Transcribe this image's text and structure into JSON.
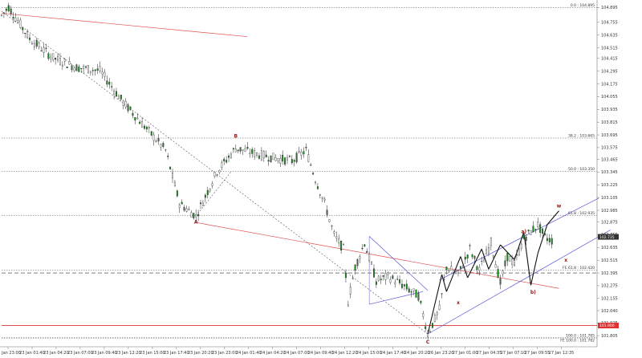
{
  "chart_data": {
    "type": "candlestick",
    "title": "",
    "xlabel": "",
    "ylabel": "",
    "ylim": [
      101.7,
      104.95
    ],
    "x_count": 220,
    "price_ticks": [
      "104.895",
      "104.755",
      "104.635",
      "104.515",
      "104.415",
      "104.295",
      "104.175",
      "104.055",
      "103.935",
      "103.815",
      "103.695",
      "103.575",
      "103.465",
      "103.345",
      "103.225",
      "103.105",
      "102.985",
      "102.875",
      "102.755",
      "102.635",
      "102.515",
      "102.395",
      "102.275",
      "102.155",
      "102.040",
      "101.925",
      "101.805"
    ],
    "time_ticks": [
      "22 Jan 23:00",
      "23 Jan 01:40",
      "23 Jan 04:20",
      "23 Jan 07:00",
      "23 Jan 09:40",
      "23 Jan 12:20",
      "23 Jan 15:00",
      "23 Jan 17:40",
      "23 Jan 20:20",
      "23 Jan 23:00",
      "24 Jan 01:40",
      "24 Jan 04:20",
      "24 Jan 07:00",
      "24 Jan 09:40",
      "24 Jan 12:20",
      "24 Jan 15:00",
      "24 Jan 17:40",
      "24 Jan 20:20",
      "26 Jan 23:20",
      "27 Jan 01:00",
      "27 Jan 04:35",
      "27 Jan 07:10",
      "27 Jan 09:55",
      "27 Jan 12:35"
    ],
    "waypoints": [
      [
        0,
        104.82
      ],
      [
        3,
        104.9
      ],
      [
        12,
        104.6
      ],
      [
        22,
        104.42
      ],
      [
        32,
        104.33
      ],
      [
        42,
        104.3
      ],
      [
        52,
        104.0
      ],
      [
        62,
        103.75
      ],
      [
        70,
        103.55
      ],
      [
        76,
        103.05
      ],
      [
        83,
        102.93
      ],
      [
        92,
        103.35
      ],
      [
        100,
        103.57
      ],
      [
        108,
        103.52
      ],
      [
        116,
        103.48
      ],
      [
        124,
        103.45
      ],
      [
        130,
        103.55
      ],
      [
        134,
        103.28
      ],
      [
        138,
        103.05
      ],
      [
        142,
        102.75
      ],
      [
        146,
        102.62
      ],
      [
        148,
        102.12
      ],
      [
        151,
        102.45
      ],
      [
        155,
        102.68
      ],
      [
        160,
        102.32
      ],
      [
        165,
        102.36
      ],
      [
        170,
        102.3
      ],
      [
        175,
        102.22
      ],
      [
        178,
        102.18
      ],
      [
        182,
        101.82
      ],
      [
        187,
        102.05
      ],
      [
        190,
        102.45
      ],
      [
        195,
        102.38
      ],
      [
        200,
        102.62
      ],
      [
        204,
        102.42
      ],
      [
        209,
        102.68
      ],
      [
        213,
        102.3
      ],
      [
        216,
        102.55
      ],
      [
        219,
        102.48
      ],
      [
        223,
        102.72
      ],
      [
        229,
        102.85
      ],
      [
        232,
        102.73
      ],
      [
        235,
        102.7
      ]
    ],
    "levels": [
      {
        "label": "0.0 : 104.895",
        "value": 104.895
      },
      {
        "label": "38.2 : 103.665",
        "value": 103.665
      },
      {
        "label": "50.0 : 103.350",
        "value": 103.35
      },
      {
        "label": "61.8 : 102.935",
        "value": 102.935
      },
      {
        "label": "FE 61.8 : 102.420",
        "value": 102.42
      },
      {
        "label": "100.0 : 101.785",
        "value": 101.785
      },
      {
        "label": "FE 100.0 : 101.782",
        "value": 101.782
      }
    ],
    "dashed_levels": [
      102.395
    ],
    "red_level": {
      "value": 101.9,
      "label": "101.900"
    },
    "current_price": {
      "value": 102.735,
      "label": "102.735"
    },
    "wave_labels": [
      {
        "label": "A",
        "x": 83,
        "y": 102.86
      },
      {
        "label": "B",
        "x": 100,
        "y": 103.67
      },
      {
        "label": "C",
        "x": 182,
        "y": 101.73
      },
      {
        "label": "a)",
        "x": 223,
        "y": 102.77
      },
      {
        "label": "b)",
        "x": 227,
        "y": 102.2
      },
      {
        "label": "x",
        "x": 195,
        "y": 102.1
      },
      {
        "label": "w",
        "x": 238,
        "y": 103.01
      },
      {
        "label": "x",
        "x": 241,
        "y": 102.5
      }
    ]
  }
}
